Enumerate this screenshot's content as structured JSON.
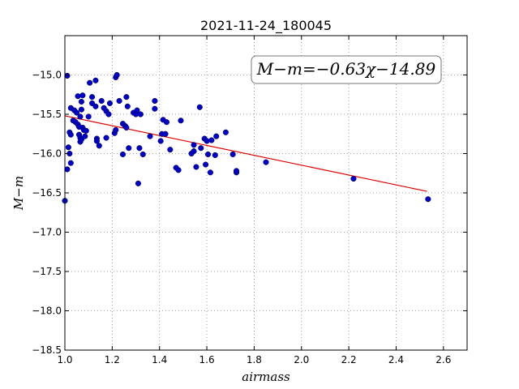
{
  "chart_data": {
    "type": "scatter",
    "title": "2021-11-24_180045",
    "xlabel": "airmass",
    "ylabel": "M−m",
    "xlim": [
      1.0,
      2.7
    ],
    "ylim": [
      -18.5,
      -14.5
    ],
    "y_inverted": true,
    "grid": true,
    "x_ticks": [
      1.0,
      1.2,
      1.4,
      1.6,
      1.8,
      2.0,
      2.2,
      2.4,
      2.6
    ],
    "x_tick_labels": [
      "1.0",
      "1.2",
      "1.4",
      "1.6",
      "1.8",
      "2.0",
      "2.2",
      "2.4",
      "2.6"
    ],
    "y_ticks": [
      -15.0,
      -15.5,
      -16.0,
      -16.5,
      -17.0,
      -17.5,
      -18.0,
      -18.5
    ],
    "y_tick_labels": [
      "−15.0",
      "−15.5",
      "−16.0",
      "−16.5",
      "−17.0",
      "−17.5",
      "−18.0",
      "−18.5"
    ],
    "annotation": "M−m=−0.63χ−14.89",
    "point_color": "#0000cc",
    "fit_color": "#dd0000",
    "fit": {
      "x": [
        1.0,
        2.53
      ],
      "y": [
        -15.52,
        -16.48
      ]
    },
    "points": [
      {
        "x": 1.01,
        "y": -15.01
      },
      {
        "x": 1.0,
        "y": -16.6
      },
      {
        "x": 1.01,
        "y": -16.2
      },
      {
        "x": 1.015,
        "y": -15.92
      },
      {
        "x": 1.02,
        "y": -16.0
      },
      {
        "x": 1.025,
        "y": -16.12
      },
      {
        "x": 1.02,
        "y": -15.73
      },
      {
        "x": 1.025,
        "y": -15.76
      },
      {
        "x": 1.025,
        "y": -15.42
      },
      {
        "x": 1.04,
        "y": -15.45
      },
      {
        "x": 1.035,
        "y": -15.58
      },
      {
        "x": 1.045,
        "y": -15.6
      },
      {
        "x": 1.05,
        "y": -15.48
      },
      {
        "x": 1.055,
        "y": -15.63
      },
      {
        "x": 1.055,
        "y": -15.27
      },
      {
        "x": 1.06,
        "y": -15.66
      },
      {
        "x": 1.06,
        "y": -15.76
      },
      {
        "x": 1.065,
        "y": -15.8
      },
      {
        "x": 1.065,
        "y": -15.85
      },
      {
        "x": 1.07,
        "y": -15.82
      },
      {
        "x": 1.065,
        "y": -15.53
      },
      {
        "x": 1.07,
        "y": -15.44
      },
      {
        "x": 1.07,
        "y": -15.34
      },
      {
        "x": 1.075,
        "y": -15.26
      },
      {
        "x": 1.075,
        "y": -15.67
      },
      {
        "x": 1.08,
        "y": -15.7
      },
      {
        "x": 1.085,
        "y": -15.78
      },
      {
        "x": 1.09,
        "y": -15.71
      },
      {
        "x": 1.1,
        "y": -15.53
      },
      {
        "x": 1.105,
        "y": -15.1
      },
      {
        "x": 1.115,
        "y": -15.28
      },
      {
        "x": 1.115,
        "y": -15.36
      },
      {
        "x": 1.13,
        "y": -15.07
      },
      {
        "x": 1.13,
        "y": -15.4
      },
      {
        "x": 1.135,
        "y": -15.81
      },
      {
        "x": 1.135,
        "y": -15.84
      },
      {
        "x": 1.145,
        "y": -15.9
      },
      {
        "x": 1.155,
        "y": -15.33
      },
      {
        "x": 1.165,
        "y": -15.42
      },
      {
        "x": 1.175,
        "y": -15.46
      },
      {
        "x": 1.175,
        "y": -15.8
      },
      {
        "x": 1.185,
        "y": -15.5
      },
      {
        "x": 1.19,
        "y": -15.36
      },
      {
        "x": 1.21,
        "y": -15.74
      },
      {
        "x": 1.215,
        "y": -15.7
      },
      {
        "x": 1.215,
        "y": -15.03
      },
      {
        "x": 1.22,
        "y": -15.0
      },
      {
        "x": 1.23,
        "y": -15.33
      },
      {
        "x": 1.245,
        "y": -16.01
      },
      {
        "x": 1.245,
        "y": -15.62
      },
      {
        "x": 1.255,
        "y": -15.65
      },
      {
        "x": 1.26,
        "y": -15.67
      },
      {
        "x": 1.26,
        "y": -15.28
      },
      {
        "x": 1.265,
        "y": -15.4
      },
      {
        "x": 1.27,
        "y": -15.93
      },
      {
        "x": 1.29,
        "y": -15.48
      },
      {
        "x": 1.3,
        "y": -15.5
      },
      {
        "x": 1.305,
        "y": -15.45
      },
      {
        "x": 1.31,
        "y": -16.38
      },
      {
        "x": 1.315,
        "y": -15.93
      },
      {
        "x": 1.32,
        "y": -15.5
      },
      {
        "x": 1.33,
        "y": -16.01
      },
      {
        "x": 1.36,
        "y": -15.78
      },
      {
        "x": 1.38,
        "y": -15.33
      },
      {
        "x": 1.38,
        "y": -15.43
      },
      {
        "x": 1.405,
        "y": -15.84
      },
      {
        "x": 1.41,
        "y": -15.75
      },
      {
        "x": 1.415,
        "y": -15.57
      },
      {
        "x": 1.425,
        "y": -15.75
      },
      {
        "x": 1.43,
        "y": -15.6
      },
      {
        "x": 1.445,
        "y": -15.95
      },
      {
        "x": 1.47,
        "y": -16.18
      },
      {
        "x": 1.48,
        "y": -16.21
      },
      {
        "x": 1.49,
        "y": -15.58
      },
      {
        "x": 1.535,
        "y": -16.0
      },
      {
        "x": 1.545,
        "y": -15.97
      },
      {
        "x": 1.545,
        "y": -15.89
      },
      {
        "x": 1.555,
        "y": -16.17
      },
      {
        "x": 1.57,
        "y": -15.41
      },
      {
        "x": 1.575,
        "y": -15.93
      },
      {
        "x": 1.59,
        "y": -15.81
      },
      {
        "x": 1.595,
        "y": -16.14
      },
      {
        "x": 1.6,
        "y": -15.84
      },
      {
        "x": 1.605,
        "y": -16.01
      },
      {
        "x": 1.615,
        "y": -16.24
      },
      {
        "x": 1.62,
        "y": -15.83
      },
      {
        "x": 1.635,
        "y": -16.02
      },
      {
        "x": 1.64,
        "y": -15.78
      },
      {
        "x": 1.68,
        "y": -15.73
      },
      {
        "x": 1.71,
        "y": -16.01
      },
      {
        "x": 1.725,
        "y": -16.24
      },
      {
        "x": 1.725,
        "y": -16.22
      },
      {
        "x": 1.85,
        "y": -16.11
      },
      {
        "x": 2.22,
        "y": -16.32
      },
      {
        "x": 2.535,
        "y": -16.58
      }
    ]
  }
}
